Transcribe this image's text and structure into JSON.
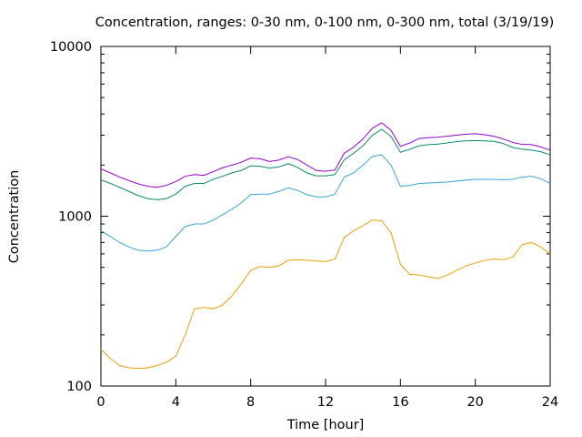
{
  "chart_data": {
    "type": "line",
    "title": "Concentration, ranges: 0-30 nm, 0-100 nm, 0-300 nm, total (3/19/19)",
    "xlabel": "Time [hour]",
    "ylabel": "Concentration",
    "xlim": [
      0,
      24
    ],
    "ylim": [
      100,
      10000
    ],
    "yscale": "log",
    "xticks": [
      0,
      4,
      8,
      12,
      16,
      20,
      24
    ],
    "yticks": [
      100,
      1000,
      10000
    ],
    "grid": false,
    "legend": "none",
    "series": [
      {
        "color": "#e5a00a",
        "x": [
          0,
          0.5,
          1,
          1.5,
          2,
          2.5,
          3,
          3.5,
          4,
          4.5,
          5,
          5.5,
          6,
          6.5,
          7,
          7.5,
          8,
          8.5,
          9,
          9.5,
          10,
          10.5,
          11,
          11.5,
          12,
          12.5,
          13,
          13.5,
          14,
          14.5,
          15,
          15.5,
          16,
          16.5,
          17,
          17.5,
          18,
          18.5,
          19,
          19.5,
          20,
          20.5,
          21,
          21.5,
          22,
          22.5,
          23,
          23.5,
          24
        ],
        "values": [
          165,
          145,
          132,
          128,
          127,
          128,
          132,
          138,
          150,
          200,
          285,
          290,
          285,
          300,
          340,
          400,
          480,
          505,
          500,
          510,
          550,
          555,
          550,
          545,
          540,
          560,
          750,
          820,
          880,
          950,
          940,
          800,
          520,
          455,
          450,
          440,
          430,
          450,
          480,
          510,
          530,
          550,
          560,
          555,
          575,
          680,
          700,
          660,
          600
        ]
      },
      {
        "color": "#3aa3d1",
        "x": [
          0,
          0.5,
          1,
          1.5,
          2,
          2.5,
          3,
          3.5,
          4,
          4.5,
          5,
          5.5,
          6,
          6.5,
          7,
          7.5,
          8,
          8.5,
          9,
          9.5,
          10,
          10.5,
          11,
          11.5,
          12,
          12.5,
          13,
          13.5,
          14,
          14.5,
          15,
          15.5,
          16,
          16.5,
          17,
          17.5,
          18,
          18.5,
          19,
          19.5,
          20,
          20.5,
          21,
          21.5,
          22,
          22.5,
          23,
          23.5,
          24
        ],
        "values": [
          820,
          760,
          700,
          660,
          630,
          625,
          630,
          660,
          760,
          870,
          900,
          900,
          950,
          1020,
          1100,
          1200,
          1340,
          1350,
          1350,
          1400,
          1470,
          1420,
          1340,
          1300,
          1300,
          1350,
          1700,
          1800,
          2000,
          2250,
          2300,
          2000,
          1500,
          1520,
          1560,
          1570,
          1580,
          1590,
          1610,
          1630,
          1650,
          1650,
          1650,
          1640,
          1650,
          1700,
          1720,
          1660,
          1560
        ]
      },
      {
        "color": "#0a8a6a",
        "x": [
          0,
          0.5,
          1,
          1.5,
          2,
          2.5,
          3,
          3.5,
          4,
          4.5,
          5,
          5.5,
          6,
          6.5,
          7,
          7.5,
          8,
          8.5,
          9,
          9.5,
          10,
          10.5,
          11,
          11.5,
          12,
          12.5,
          13,
          13.5,
          14,
          14.5,
          15,
          15.5,
          16,
          16.5,
          17,
          17.5,
          18,
          18.5,
          19,
          19.5,
          20,
          20.5,
          21,
          21.5,
          22,
          22.5,
          23,
          23.5,
          24
        ],
        "values": [
          1640,
          1560,
          1480,
          1400,
          1320,
          1270,
          1250,
          1270,
          1350,
          1500,
          1560,
          1560,
          1650,
          1720,
          1800,
          1860,
          1980,
          1970,
          1920,
          1950,
          2040,
          1940,
          1800,
          1730,
          1730,
          1760,
          2150,
          2350,
          2600,
          3000,
          3250,
          2950,
          2380,
          2480,
          2600,
          2640,
          2660,
          2700,
          2750,
          2780,
          2790,
          2780,
          2760,
          2680,
          2540,
          2480,
          2450,
          2400,
          2300
        ]
      },
      {
        "color": "#9400d3",
        "x": [
          0,
          0.5,
          1,
          1.5,
          2,
          2.5,
          3,
          3.5,
          4,
          4.5,
          5,
          5.5,
          6,
          6.5,
          7,
          7.5,
          8,
          8.5,
          9,
          9.5,
          10,
          10.5,
          11,
          11.5,
          12,
          12.5,
          13,
          13.5,
          14,
          14.5,
          15,
          15.5,
          16,
          16.5,
          17,
          17.5,
          18,
          18.5,
          19,
          19.5,
          20,
          20.5,
          21,
          21.5,
          22,
          22.5,
          23,
          23.5,
          24
        ],
        "values": [
          1900,
          1800,
          1700,
          1620,
          1550,
          1500,
          1480,
          1520,
          1600,
          1720,
          1760,
          1740,
          1830,
          1930,
          2000,
          2080,
          2200,
          2180,
          2100,
          2140,
          2240,
          2160,
          2000,
          1860,
          1840,
          1870,
          2350,
          2550,
          2850,
          3300,
          3550,
          3200,
          2580,
          2700,
          2870,
          2900,
          2920,
          2960,
          3000,
          3040,
          3060,
          3020,
          2960,
          2850,
          2720,
          2650,
          2640,
          2560,
          2450
        ]
      }
    ]
  }
}
